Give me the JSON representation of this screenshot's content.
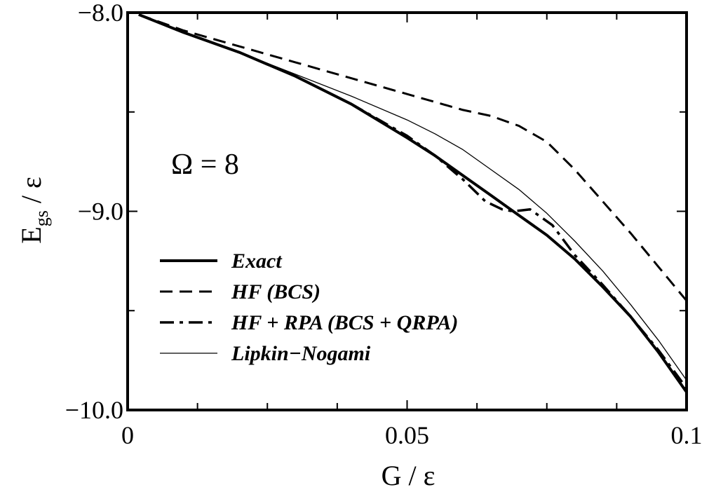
{
  "chart_data": {
    "type": "line",
    "title": "",
    "xlabel": "G / ε",
    "ylabel_main": "E",
    "ylabel_sub": "gs",
    "ylabel_tail": " / ε",
    "xlim": [
      0,
      0.1
    ],
    "ylim": [
      -10.0,
      -8.0
    ],
    "x_ticks": [
      0,
      0.05,
      0.1
    ],
    "x_tick_labels": [
      "0",
      "0.05",
      "0.1"
    ],
    "y_ticks": [
      -8.0,
      -9.0,
      -10.0
    ],
    "y_tick_labels": [
      "−8.0",
      "−9.0",
      "−10.0"
    ],
    "grid": false,
    "legend_position": "lower-left",
    "annotation": "Ω = 8",
    "series": [
      {
        "name": "Exact",
        "style": "solid",
        "width": 4,
        "x": [
          0.002,
          0.01,
          0.02,
          0.03,
          0.04,
          0.05,
          0.055,
          0.06,
          0.065,
          0.07,
          0.075,
          0.08,
          0.085,
          0.09,
          0.095,
          0.1
        ],
        "y": [
          -8.01,
          -8.1,
          -8.2,
          -8.32,
          -8.46,
          -8.63,
          -8.72,
          -8.82,
          -8.92,
          -9.02,
          -9.12,
          -9.24,
          -9.38,
          -9.53,
          -9.71,
          -9.91
        ]
      },
      {
        "name": "HF (BCS)",
        "style": "dashed",
        "width": 3,
        "x": [
          0.002,
          0.01,
          0.02,
          0.03,
          0.04,
          0.05,
          0.06,
          0.065,
          0.07,
          0.075,
          0.08,
          0.085,
          0.09,
          0.095,
          0.1
        ],
        "y": [
          -8.01,
          -8.09,
          -8.17,
          -8.25,
          -8.33,
          -8.41,
          -8.49,
          -8.52,
          -8.57,
          -8.65,
          -8.79,
          -8.95,
          -9.11,
          -9.28,
          -9.45
        ]
      },
      {
        "name": "HF + RPA (BCS + QRPA)",
        "style": "dashdot",
        "width": 3.5,
        "x": [
          0.002,
          0.01,
          0.02,
          0.03,
          0.04,
          0.05,
          0.055,
          0.06,
          0.064,
          0.067,
          0.069,
          0.072,
          0.076,
          0.08,
          0.085,
          0.09,
          0.095,
          0.1
        ],
        "y": [
          -8.01,
          -8.1,
          -8.2,
          -8.32,
          -8.46,
          -8.62,
          -8.72,
          -8.84,
          -8.95,
          -8.99,
          -9.0,
          -8.99,
          -9.07,
          -9.22,
          -9.37,
          -9.53,
          -9.7,
          -9.89
        ]
      },
      {
        "name": "Lipkin−Nogami",
        "style": "thin",
        "width": 1.3,
        "x": [
          0.002,
          0.01,
          0.02,
          0.03,
          0.04,
          0.05,
          0.055,
          0.06,
          0.065,
          0.07,
          0.075,
          0.08,
          0.085,
          0.09,
          0.095,
          0.1
        ],
        "y": [
          -8.01,
          -8.1,
          -8.2,
          -8.31,
          -8.42,
          -8.54,
          -8.61,
          -8.69,
          -8.79,
          -8.89,
          -9.01,
          -9.15,
          -9.3,
          -9.47,
          -9.65,
          -9.85
        ]
      }
    ]
  }
}
